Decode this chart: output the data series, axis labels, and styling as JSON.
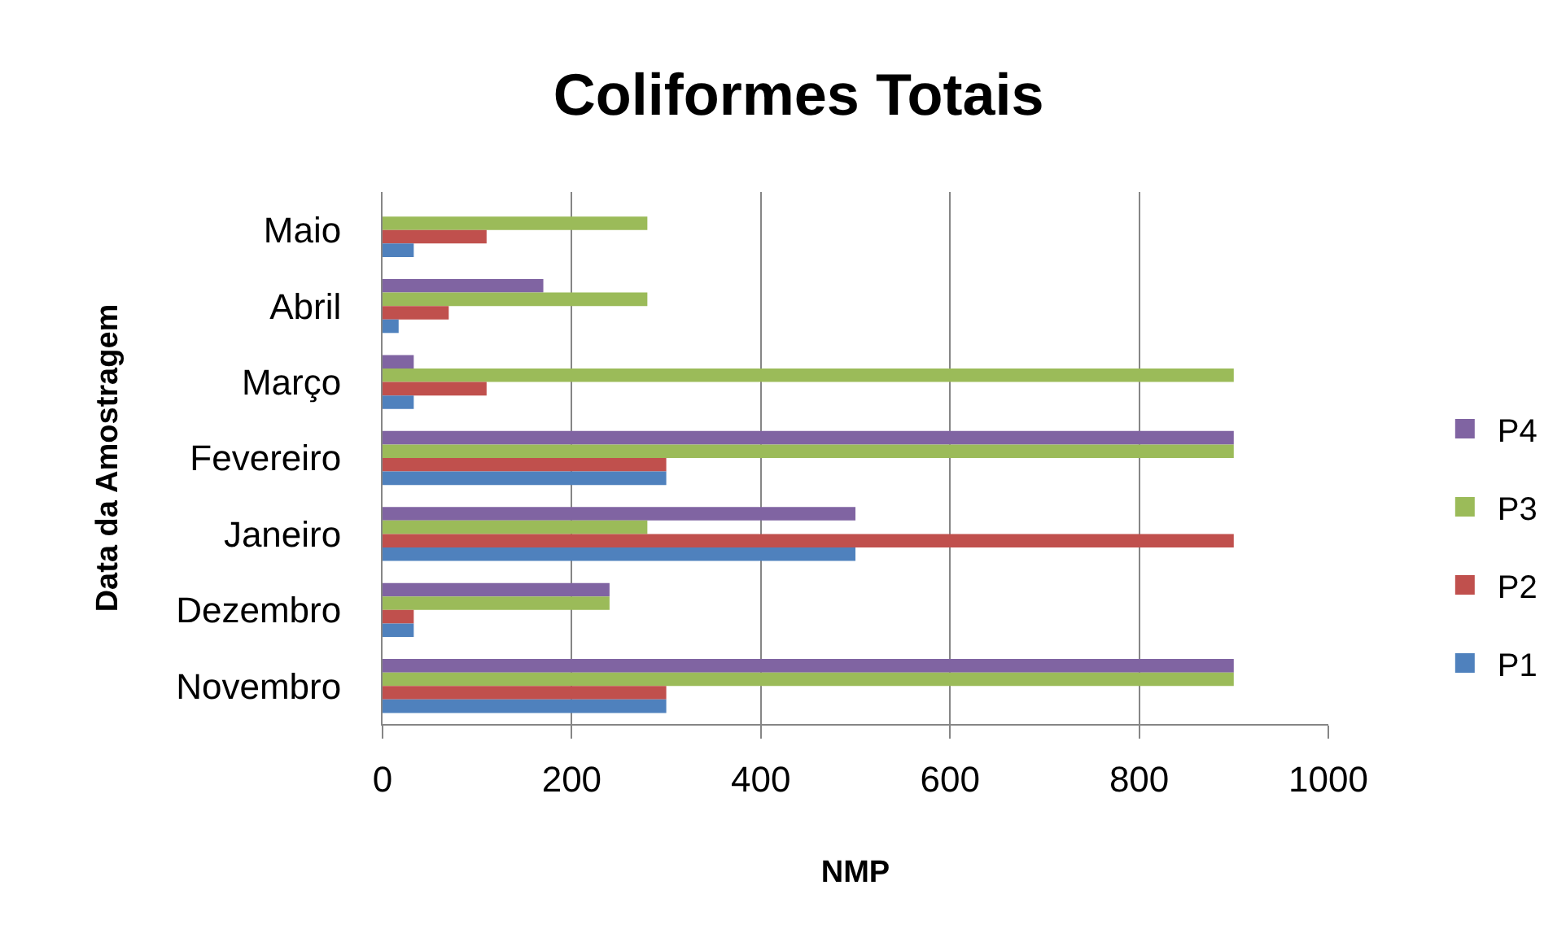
{
  "chart_data": {
    "type": "bar",
    "orientation": "horizontal",
    "title": "Coliformes Totais",
    "xlabel": "NMP",
    "ylabel": "Data da Amostragem",
    "categories": [
      "Maio",
      "Abril",
      "Março",
      "Fevereiro",
      "Janeiro",
      "Dezembro",
      "Novembro"
    ],
    "series": [
      {
        "name": "P1",
        "color": "#4f81bd",
        "values": [
          33,
          17,
          33,
          300,
          500,
          33,
          300
        ]
      },
      {
        "name": "P2",
        "color": "#c0504d",
        "values": [
          110,
          70,
          110,
          300,
          900,
          33,
          300
        ]
      },
      {
        "name": "P3",
        "color": "#9bbb59",
        "values": [
          280,
          280,
          900,
          900,
          280,
          240,
          900
        ]
      },
      {
        "name": "P4",
        "color": "#8064a2",
        "values": [
          null,
          170,
          33,
          900,
          500,
          240,
          900
        ]
      }
    ],
    "xlim": [
      0,
      1000
    ],
    "xticks": [
      0,
      200,
      400,
      600,
      800,
      1000
    ],
    "grid": "x",
    "legend": "right"
  }
}
